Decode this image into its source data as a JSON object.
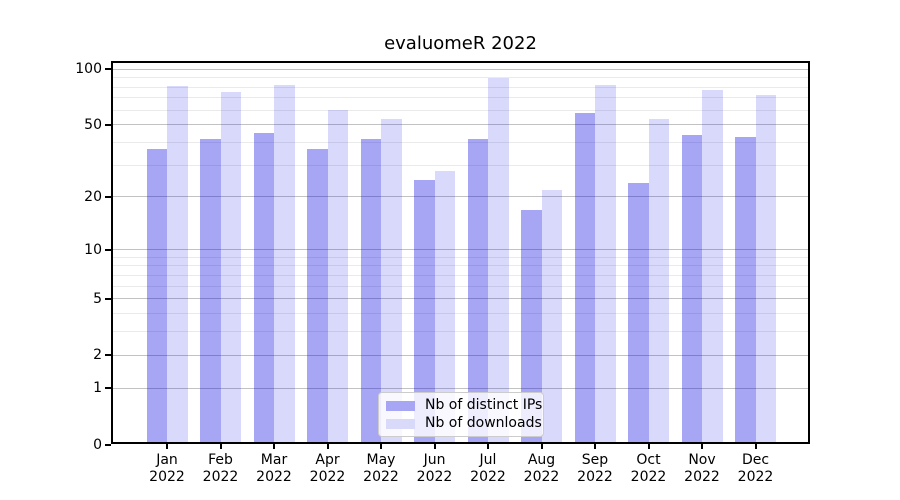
{
  "chart_data": {
    "type": "bar",
    "title": "evaluomeR 2022",
    "categories": [
      "Jan",
      "Feb",
      "Mar",
      "Apr",
      "May",
      "Jun",
      "Jul",
      "Aug",
      "Sep",
      "Oct",
      "Nov",
      "Dec"
    ],
    "x_year_label": "2022",
    "series": [
      {
        "name": "Nb of distinct IPs",
        "values": [
          37,
          42,
          45,
          37,
          42,
          25,
          42,
          17,
          58,
          24,
          44,
          43
        ],
        "fill": "rgba(0,0,225,0.35)",
        "legend_color": "#a6a6f5"
      },
      {
        "name": "Nb of downloads",
        "values": [
          81,
          75,
          82,
          60,
          54,
          28,
          90,
          22,
          82,
          54,
          77,
          73
        ],
        "fill": "rgba(0,0,225,0.15)",
        "legend_color": "#d9d9fa"
      }
    ],
    "y_scale": "log1p",
    "y_ticks": [
      0,
      1,
      2,
      5,
      10,
      20,
      50,
      100
    ],
    "y_minor_grid": [
      3,
      4,
      6,
      7,
      8,
      9,
      30,
      40,
      60,
      70,
      80,
      90
    ],
    "ylim": [
      0,
      111
    ],
    "grid": true,
    "legend_position": "bottom-center",
    "colors": {
      "major_grid": "#c2c2c2",
      "minor_grid": "#eaeaea",
      "axis": "#000000",
      "text": "#000000"
    }
  }
}
